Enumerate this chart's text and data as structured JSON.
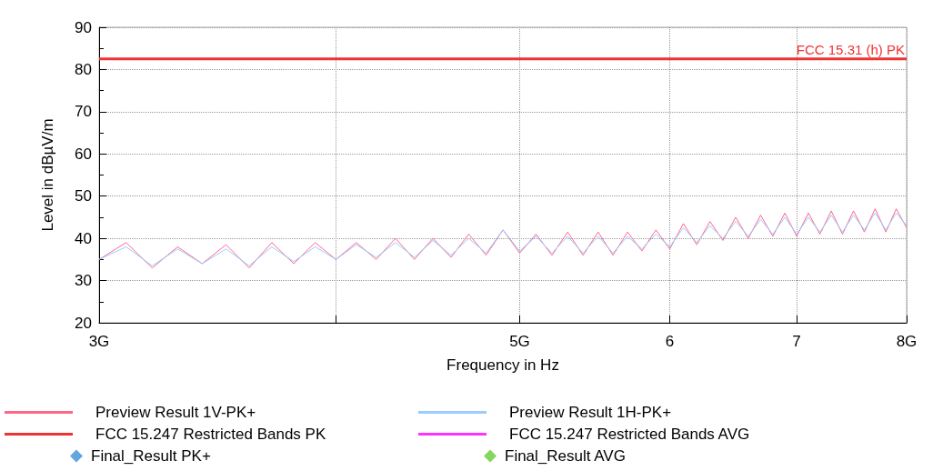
{
  "chart_data": {
    "type": "line",
    "xlabel": "Frequency in Hz",
    "ylabel": "Level in dBµV/m",
    "log": "x",
    "x": [
      3.0,
      3.1,
      3.2,
      3.3,
      3.4,
      3.5,
      3.6,
      3.7,
      3.8,
      3.9,
      4.0,
      4.1,
      4.2,
      4.3,
      4.4,
      4.5,
      4.6,
      4.7,
      4.8,
      4.9,
      5.0,
      5.1,
      5.2,
      5.3,
      5.4,
      5.5,
      5.6,
      5.7,
      5.8,
      5.9,
      6.0,
      6.1,
      6.2,
      6.3,
      6.4,
      6.5,
      6.6,
      6.7,
      6.8,
      6.9,
      7.0,
      7.1,
      7.2,
      7.3,
      7.4,
      7.5,
      7.6,
      7.7,
      7.8,
      7.9,
      8.0
    ],
    "series": [
      {
        "name": "Preview Result 1V-PK+",
        "color": "#ff6688",
        "values": [
          35,
          39,
          33,
          38,
          34,
          38.5,
          33,
          39,
          34,
          39,
          35,
          39,
          35,
          40,
          35,
          40,
          35.5,
          41,
          36,
          42,
          36.5,
          41,
          36,
          41.5,
          36,
          41.5,
          36,
          41.5,
          37,
          42,
          37.5,
          43.5,
          38.5,
          44,
          39.5,
          45,
          40,
          45.5,
          40.5,
          46,
          40.5,
          46,
          41,
          46.5,
          41,
          46.5,
          41.5,
          47,
          41.5,
          47,
          42.5
        ]
      },
      {
        "name": "Preview Result 1H-PK+",
        "color": "#99ccff",
        "values": [
          35,
          38,
          33.5,
          37.5,
          34,
          37.5,
          33.5,
          38,
          34.5,
          38,
          35,
          38.5,
          35.5,
          39,
          35.5,
          39.5,
          36,
          40,
          36.5,
          42,
          37,
          40.5,
          36.5,
          40.5,
          36.5,
          40.5,
          36.5,
          40.5,
          37.5,
          41,
          38,
          42.5,
          39,
          43,
          40,
          44,
          40.5,
          44.5,
          41,
          45,
          41,
          45,
          41.5,
          45.5,
          41.5,
          45.5,
          42,
          46,
          42,
          46,
          43
        ]
      },
      {
        "name": "FCC 15.247 Restricted Bands PK",
        "color": "#ee3333",
        "x": [
          3.0,
          8.0
        ],
        "values": [
          82.5,
          82.5
        ]
      },
      {
        "name": "FCC 15.247 Restricted Bands AVG",
        "color": "#ff33ff",
        "values": [
          null,
          null,
          null,
          null,
          null,
          null,
          null,
          null,
          null,
          null,
          null,
          null,
          null,
          null,
          null,
          null,
          null,
          null,
          null,
          null,
          null,
          null,
          null,
          null,
          null,
          null,
          null,
          null,
          null,
          null,
          null,
          null,
          null,
          null,
          null,
          null,
          null,
          null,
          null,
          null,
          null,
          null,
          null,
          null,
          null,
          null,
          null,
          null,
          null,
          null,
          null
        ]
      },
      {
        "name": "Final_Result PK+",
        "type": "scatter",
        "marker": "diamond",
        "color": "#3c8fd8",
        "values": [
          null,
          null,
          null,
          null,
          null,
          null,
          null,
          null,
          null,
          null,
          null,
          null,
          null,
          null,
          null,
          null,
          null,
          null,
          null,
          null,
          null,
          null,
          null,
          null,
          null,
          null,
          null,
          null,
          null,
          null,
          null,
          null,
          null,
          null,
          null,
          null,
          null,
          null,
          null,
          null,
          null,
          null,
          null,
          null,
          null,
          null,
          null,
          null,
          null,
          null,
          null
        ]
      },
      {
        "name": "Final_Result AVG",
        "type": "scatter",
        "marker": "diamond",
        "color": "#66cc33",
        "values": [
          null,
          null,
          null,
          null,
          null,
          null,
          null,
          null,
          null,
          null,
          null,
          null,
          null,
          null,
          null,
          null,
          null,
          null,
          null,
          null,
          null,
          null,
          null,
          null,
          null,
          null,
          null,
          null,
          null,
          null,
          null,
          null,
          null,
          null,
          null,
          null,
          null,
          null,
          null,
          null,
          null,
          null,
          null,
          null,
          null,
          null,
          null,
          null,
          null,
          null,
          null
        ]
      }
    ],
    "annotations": [
      {
        "text": "FCC 15.31 (h) PK",
        "x": 8.0,
        "y": 82.5
      }
    ],
    "xlim": [
      3.0,
      8.0
    ],
    "xticks": [
      {
        "value": 3,
        "label": "3G"
      },
      {
        "value": 4,
        "label": null
      },
      {
        "value": 5,
        "label": "5G"
      },
      6,
      7,
      {
        "value": 8,
        "label": "8G"
      }
    ],
    "ylim": [
      20,
      90
    ],
    "yticks": [
      20,
      30,
      40,
      50,
      60,
      70,
      80,
      90
    ],
    "grid": true,
    "legend": "bottom",
    "line_style": "solid"
  }
}
